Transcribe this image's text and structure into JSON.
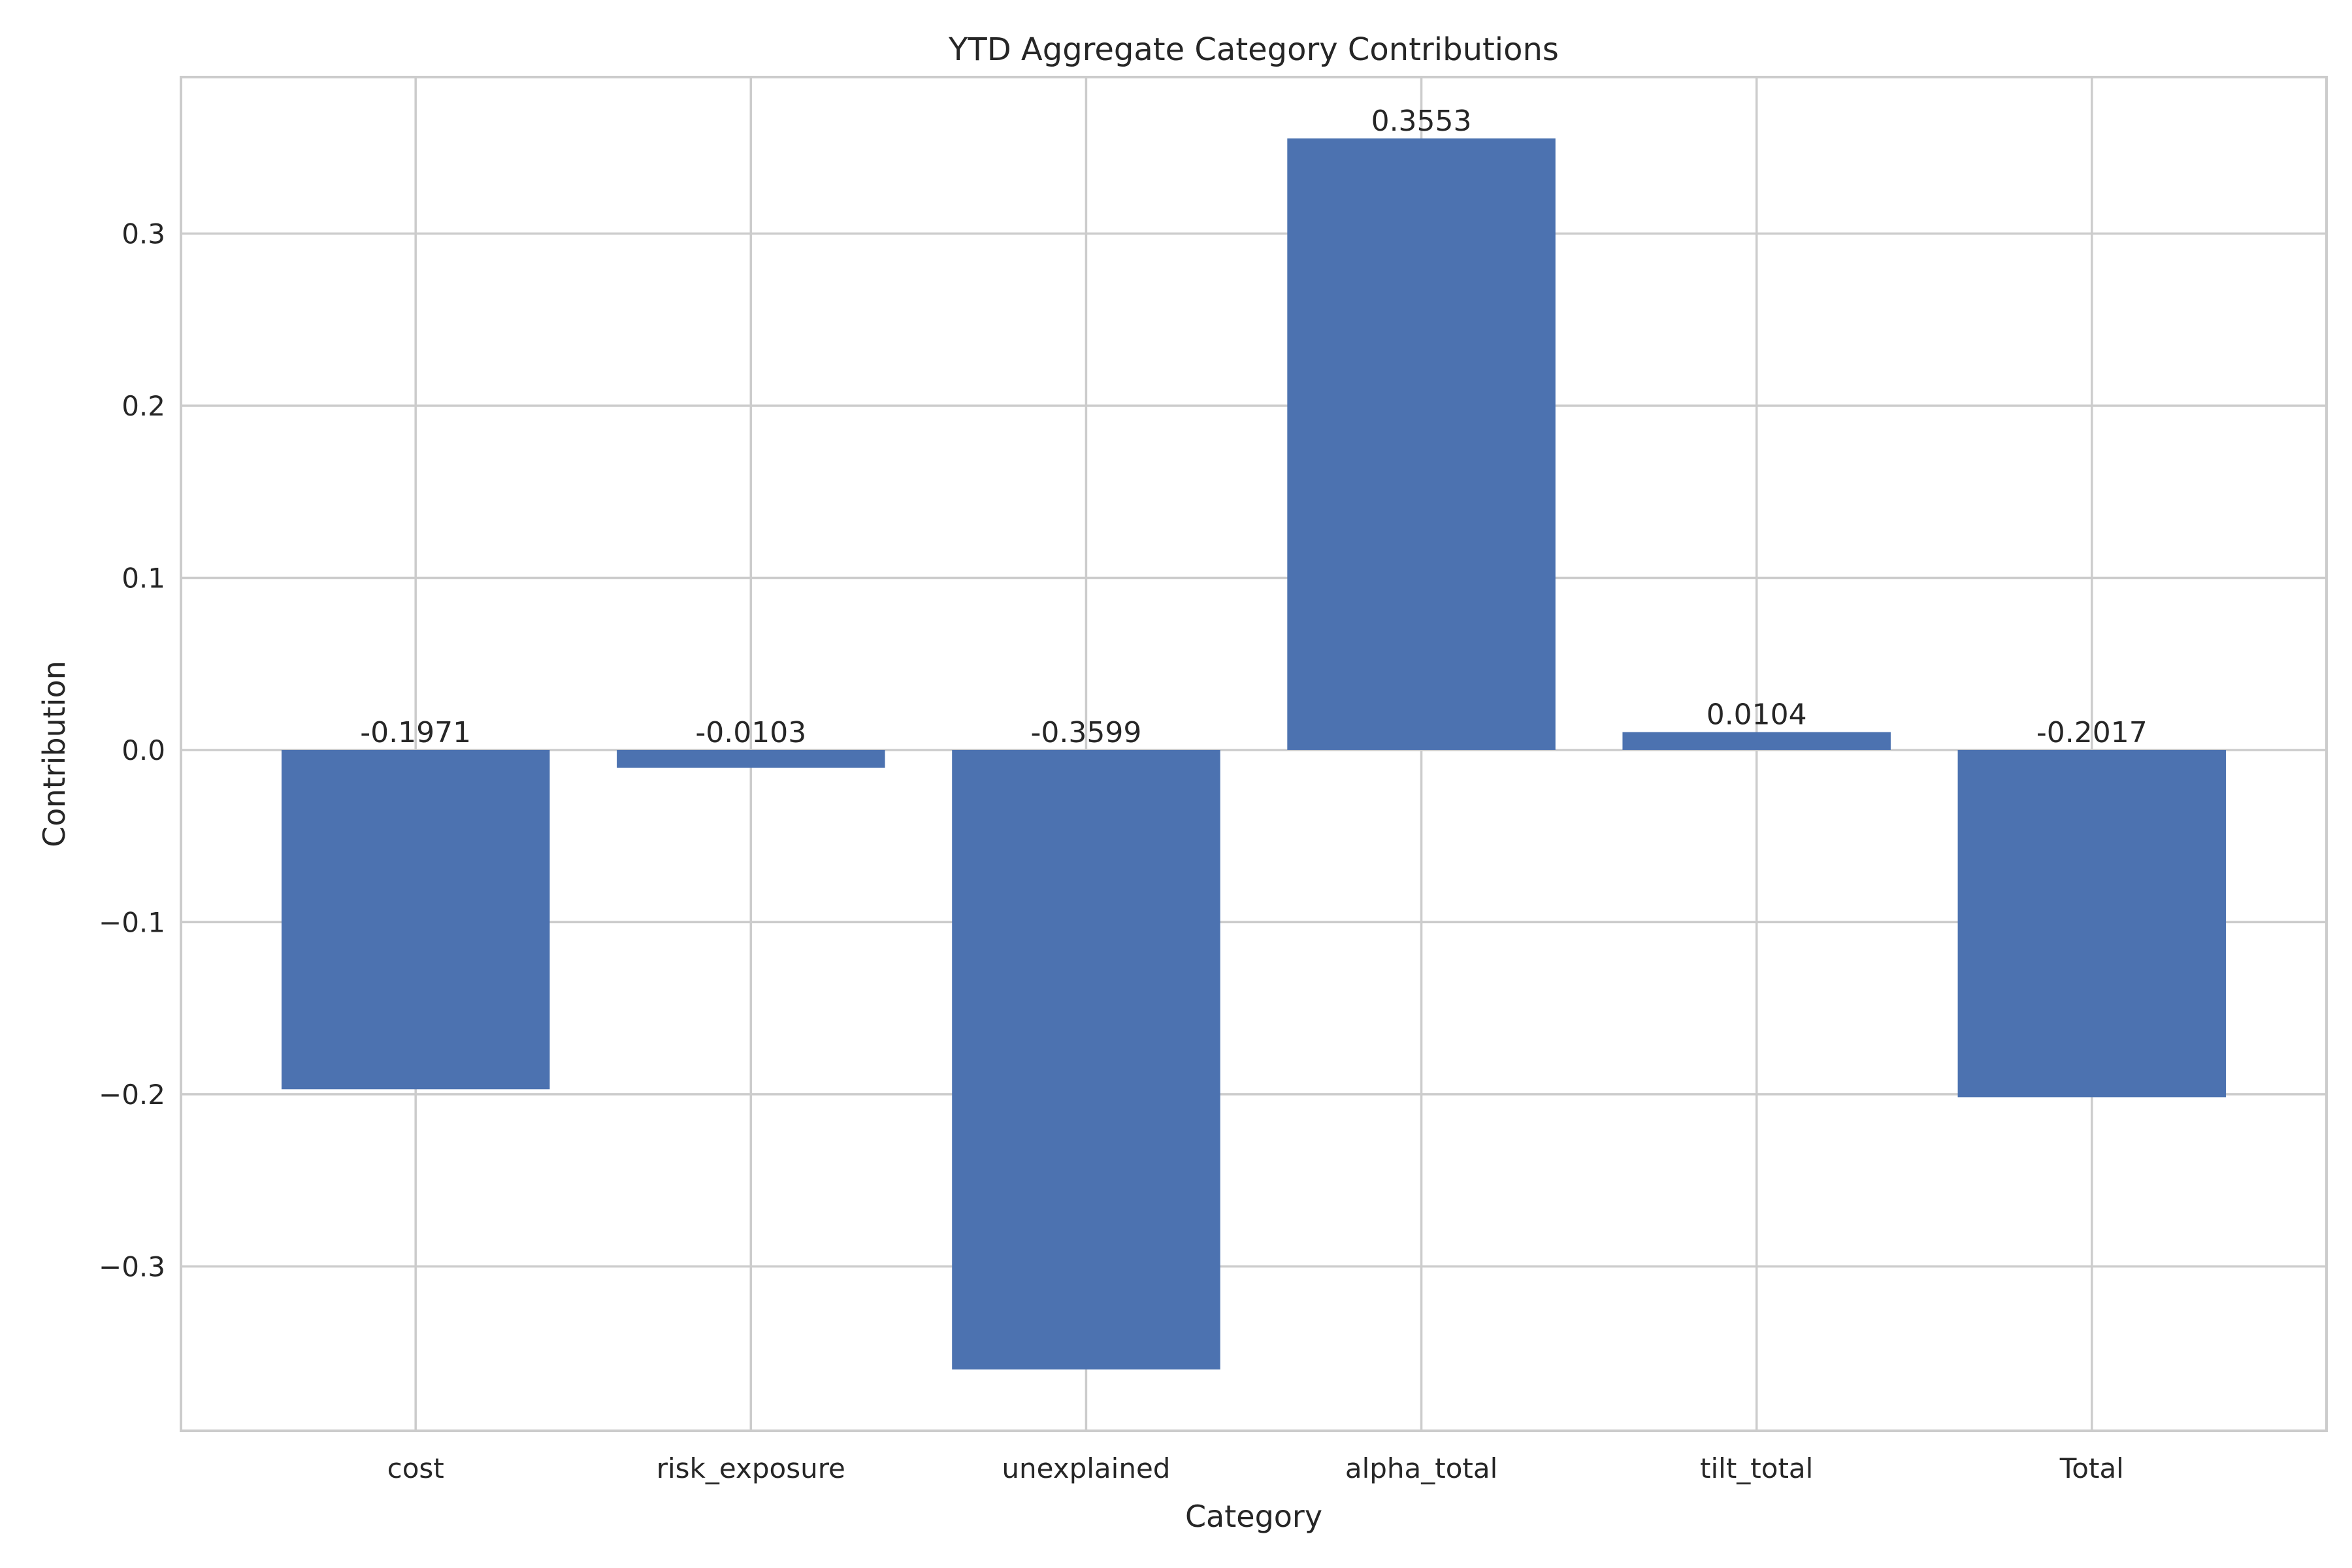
{
  "chart_data": {
    "type": "bar",
    "title": "YTD Aggregate Category Contributions",
    "xlabel": "Category",
    "ylabel": "Contribution",
    "categories": [
      "cost",
      "risk_exposure",
      "unexplained",
      "alpha_total",
      "tilt_total",
      "Total"
    ],
    "values": [
      -0.1971,
      -0.0103,
      -0.3599,
      0.3553,
      0.0104,
      -0.2017
    ],
    "data_labels": [
      "-0.1971",
      "-0.0103",
      "-0.3599",
      "0.3553",
      "0.0104",
      "-0.2017"
    ],
    "yticks": [
      -0.3,
      -0.2,
      -0.1,
      0.0,
      0.1,
      0.2,
      0.3
    ],
    "ytick_labels": [
      "−0.3",
      "−0.2",
      "−0.1",
      "0.0",
      "0.1",
      "0.2",
      "0.3"
    ],
    "ylim": [
      -0.3955,
      0.3909
    ],
    "grid": true,
    "bar_color": "#4c72b0"
  }
}
